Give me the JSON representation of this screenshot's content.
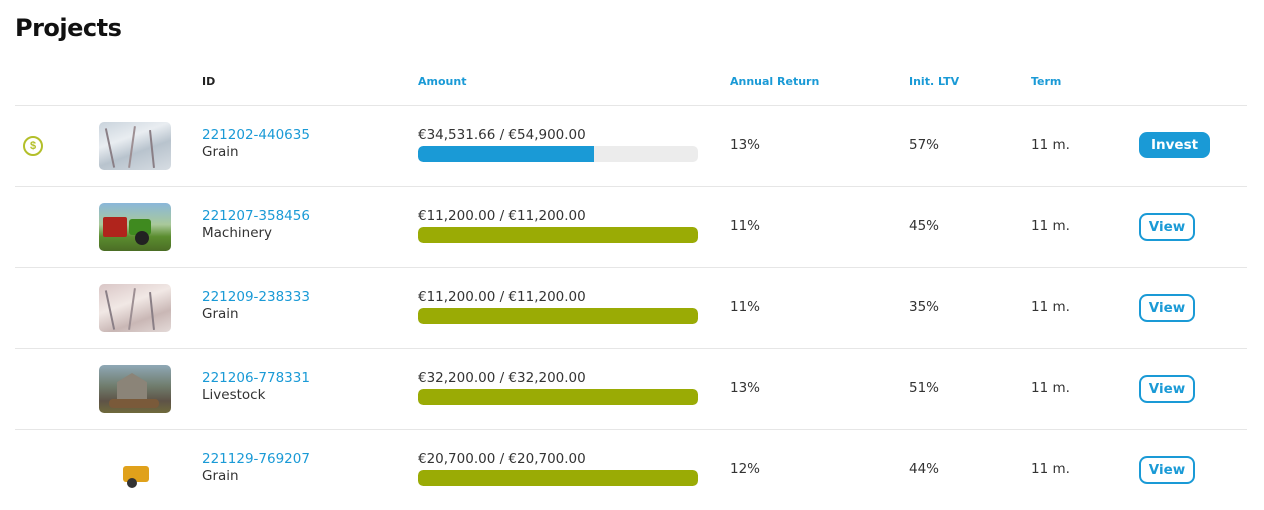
{
  "page": {
    "title": "Projects"
  },
  "columns": {
    "id": "ID",
    "amount": "Amount",
    "annual_return": "Annual Return",
    "ltv": "Init. LTV",
    "term": "Term"
  },
  "colors": {
    "accent": "#1a9ad6",
    "progress_funded": "#9aab05",
    "progress_active": "#1a9ad6",
    "coin": "#b3bf2a"
  },
  "rows": [
    {
      "id": "221202-440635",
      "category": "Grain",
      "amount": "€34,531.66 / €54,900.00",
      "funded_fraction": 0.629,
      "annual_return": "13%",
      "ltv": "57%",
      "term": "11 m.",
      "action": "Invest",
      "has_coin": true,
      "coin_symbol": "$",
      "image": "frost-grass"
    },
    {
      "id": "221207-358456",
      "category": "Machinery",
      "amount": "€11,200.00 / €11,200.00",
      "funded_fraction": 1.0,
      "annual_return": "11%",
      "ltv": "45%",
      "term": "11 m.",
      "action": "View",
      "image": "tractor"
    },
    {
      "id": "221209-238333",
      "category": "Grain",
      "amount": "€11,200.00 / €11,200.00",
      "funded_fraction": 1.0,
      "annual_return": "11%",
      "ltv": "35%",
      "term": "11 m.",
      "action": "View",
      "image": "frost-field"
    },
    {
      "id": "221206-778331",
      "category": "Livestock",
      "amount": "€32,200.00 / €32,200.00",
      "funded_fraction": 1.0,
      "annual_return": "13%",
      "ltv": "51%",
      "term": "11 m.",
      "action": "View",
      "image": "barn-cattle"
    },
    {
      "id": "221129-769207",
      "category": "Grain",
      "amount": "€20,700.00 / €20,700.00",
      "funded_fraction": 1.0,
      "annual_return": "12%",
      "ltv": "44%",
      "term": "11 m.",
      "action": "View",
      "image": "harvester"
    }
  ]
}
